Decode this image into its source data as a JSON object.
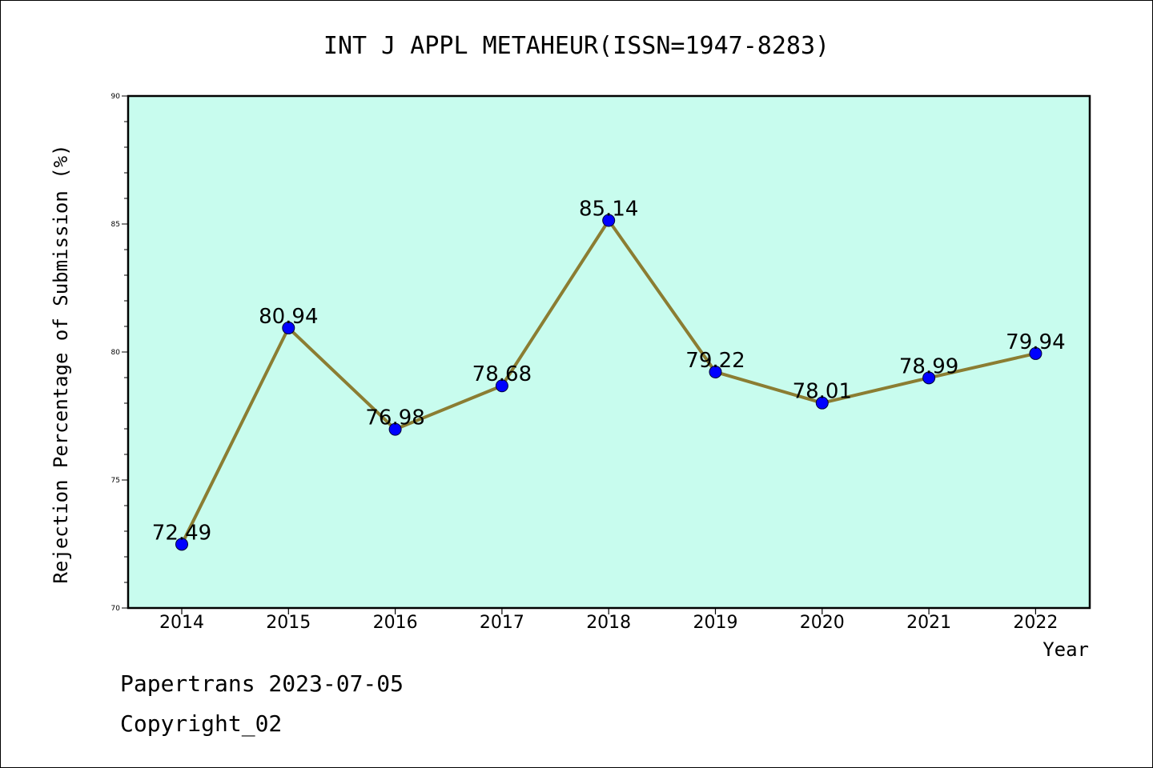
{
  "chart_data": {
    "type": "line",
    "title": "INT J APPL METAHEUR(ISSN=1947-8283)",
    "xlabel": "Year",
    "ylabel": "Rejection Percentage of Submission (%)",
    "categories": [
      "2014",
      "2015",
      "2016",
      "2017",
      "2018",
      "2019",
      "2020",
      "2021",
      "2022"
    ],
    "values": [
      72.49,
      80.94,
      76.98,
      78.68,
      85.14,
      79.22,
      78.01,
      78.99,
      79.94
    ],
    "data_labels": [
      "72.49",
      "80.94",
      "76.98",
      "78.68",
      "85.14",
      "79.22",
      "78.01",
      "78.99",
      "79.94"
    ],
    "ylim": [
      70,
      90
    ],
    "yticks": [
      "70",
      "75",
      "80",
      "85",
      "90"
    ],
    "grid": false,
    "colors": {
      "plot_background": "#c8fcee",
      "line": "#8b7d32",
      "marker": "#0000ff"
    }
  },
  "footer": {
    "line1": "Papertrans 2023-07-05",
    "line2": "Copyright_02"
  }
}
